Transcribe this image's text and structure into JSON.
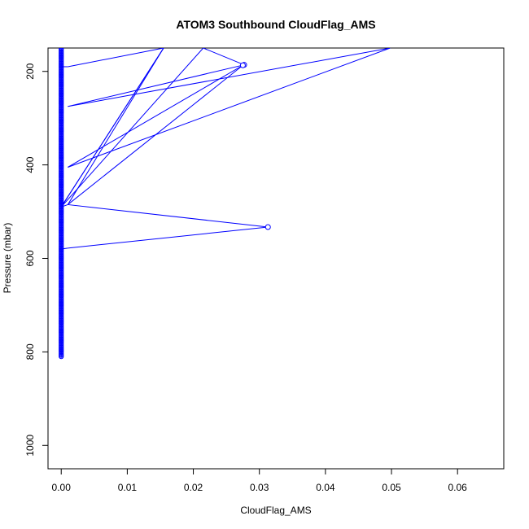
{
  "chart_data": {
    "type": "line",
    "title": "ATOM3 Southbound CloudFlag_AMS",
    "xlabel": "CloudFlag_AMS",
    "ylabel": "Pressure (mbar)",
    "xlim": [
      -0.002,
      0.067
    ],
    "ylim": [
      1050,
      150
    ],
    "y_reversed": true,
    "x_ticks": [
      0.0,
      0.01,
      0.02,
      0.03,
      0.04,
      0.05,
      0.06
    ],
    "x_tick_labels": [
      "0.00",
      "0.01",
      "0.02",
      "0.03",
      "0.04",
      "0.05",
      "0.06"
    ],
    "y_ticks": [
      200,
      400,
      600,
      800,
      1000
    ],
    "y_tick_labels": [
      "200",
      "400",
      "600",
      "800",
      "1000"
    ],
    "grid": false,
    "series": [
      {
        "color": "#0000ff",
        "markers": "open-circle",
        "x": [
          0,
          0.001,
          0.0155,
          0,
          0.0215,
          0.0277,
          0.001,
          0.0498,
          0.001,
          0.0275,
          0.001,
          0.0155,
          0,
          0.001,
          0.0313,
          0.001,
          0
        ],
        "y": [
          190,
          190,
          150,
          490,
          150,
          186,
          275,
          150,
          405,
          187,
          485,
          150,
          490,
          485,
          533,
          578,
          580
        ]
      }
    ],
    "column_x": 0,
    "column_y_range": [
      150,
      812
    ]
  }
}
